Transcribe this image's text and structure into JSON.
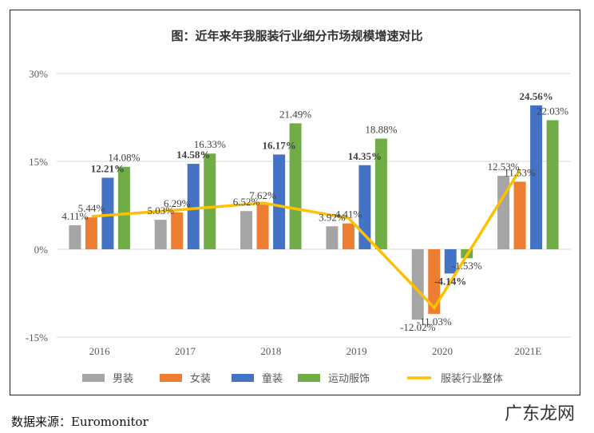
{
  "chart_data": {
    "type": "bar",
    "title": "图：近年来年我服装行业细分市场规模增速对比",
    "categories": [
      "2016",
      "2017",
      "2018",
      "2019",
      "2020",
      "2021E"
    ],
    "ylim": [
      -15,
      30
    ],
    "yticks": [
      "-15%",
      "0%",
      "15%",
      "30%"
    ],
    "ytick_values": [
      -15,
      0,
      15,
      30
    ],
    "grid": true,
    "legend_position": "bottom",
    "series": [
      {
        "name": "男装",
        "kind": "bar",
        "color": "#A5A5A5",
        "values": [
          4.11,
          5.03,
          6.52,
          3.92,
          -12.02,
          12.53
        ],
        "labels": [
          "4.11%",
          "5.03%",
          "6.52%",
          "3.92%",
          "-12.02%",
          "12.53%"
        ]
      },
      {
        "name": "女装",
        "kind": "bar",
        "color": "#ED7D31",
        "values": [
          5.44,
          6.29,
          7.62,
          4.41,
          -11.03,
          11.53
        ],
        "labels": [
          "5.44%",
          "6.29%",
          "7.62%",
          "4.41%",
          "-11.03%",
          "11.53%"
        ]
      },
      {
        "name": "童装",
        "kind": "bar",
        "color": "#4472C4",
        "values": [
          12.21,
          14.58,
          16.17,
          14.35,
          -4.14,
          24.56
        ],
        "labels": [
          "12.21%",
          "14.58%",
          "16.17%",
          "14.35%",
          "-4.14%",
          "24.56%"
        ],
        "bold": true
      },
      {
        "name": "运动服饰",
        "kind": "bar",
        "color": "#70AD47",
        "values": [
          14.08,
          16.33,
          21.49,
          18.88,
          -1.53,
          22.03
        ],
        "labels": [
          "14.08%",
          "16.33%",
          "21.49%",
          "18.88%",
          "-1.53%",
          "22.03%"
        ]
      },
      {
        "name": "服装行业整体",
        "kind": "line",
        "color": "#FFC000",
        "values": [
          5.6,
          6.7,
          7.9,
          5.3,
          -10,
          13.6
        ]
      }
    ]
  },
  "source": "数据来源：Euromonitor",
  "watermark": "广东龙网"
}
